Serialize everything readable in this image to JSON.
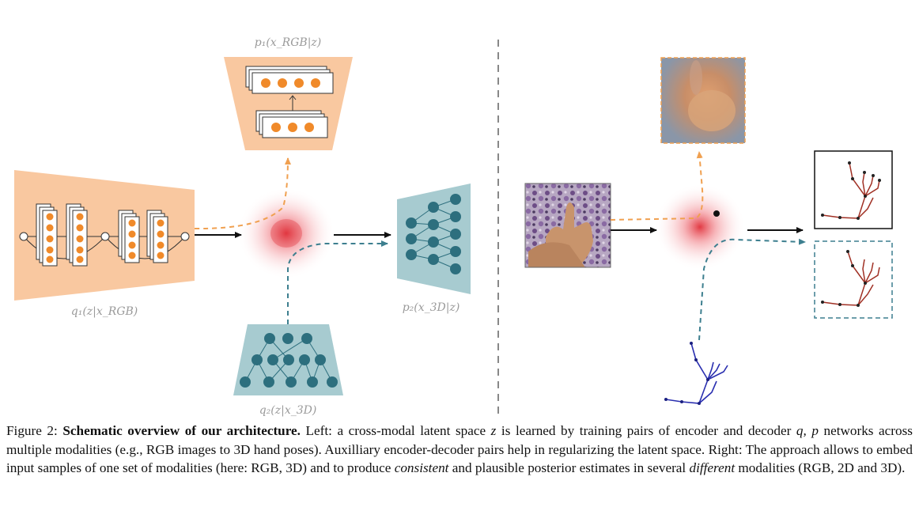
{
  "figure": {
    "labels": {
      "p1": "p₁(x_RGB|z)",
      "q1": "q₁(z|x_RGB)",
      "p2": "p₂(x_3D|z)",
      "q2": "q₂(z|x_3D)"
    },
    "colors": {
      "rgb_orange": "#f9c8a0",
      "node_orange": "#f08a2a",
      "teal_fill": "#a7cbd0",
      "teal_node": "#2d6f7e",
      "orange_dash": "#f0a050",
      "teal_dash": "#3d7f8f",
      "latent_red": "#e0303a"
    },
    "icons": [
      "rgb-encoder-trapezoid",
      "rgb-decoder-trapezoid",
      "3d-encoder-trapezoid",
      "3d-decoder-trapezoid",
      "latent-space-cloud",
      "hand-photo",
      "blurry-reconstruction",
      "2d-pose-skeleton",
      "3d-pose-skeleton"
    ]
  },
  "caption": {
    "prefix": "Figure 2: ",
    "bold": "Schematic overview of our architecture.",
    "p1": " Left: a cross-modal latent space ",
    "z": "z",
    "p2": " is learned by training pairs of encoder and decoder ",
    "qp": "q, p",
    "p3": " networks across multiple modalities (e.g., RGB images to 3D hand poses). Auxilliary encoder-decoder pairs help in regularizing the latent space. Right: The approach allows to embed input samples of one set of modalities (here: RGB, 3D) and to produce ",
    "consistent": "consistent",
    "p4": " and plausible posterior estimates in several ",
    "different": "different",
    "p5": " modalities (RGB, 2D and 3D)."
  }
}
